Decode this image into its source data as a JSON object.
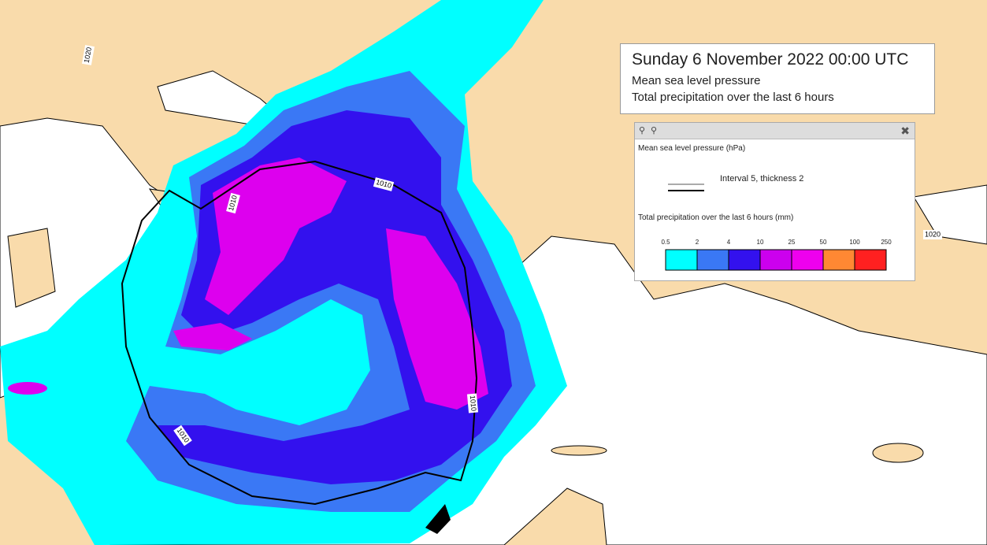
{
  "header": {
    "title": "Sunday 6 November 2022 00:00 UTC",
    "lines": [
      "Mean sea level pressure",
      "Total precipitation over the last 6 hours"
    ]
  },
  "legend": {
    "pressure": {
      "title": "Mean sea level pressure (hPa)",
      "style": "Interval 5, thickness 2"
    },
    "precipitation": {
      "title": "Total precipitation over the last 6 hours (mm)",
      "levels": [
        "0.5",
        "2",
        "4",
        "10",
        "25",
        "50",
        "100",
        "250"
      ],
      "colors": [
        "#00ffff",
        "#3a78f5",
        "#3311ee",
        "#cc00ee",
        "#ee00ee",
        "#ff8833",
        "#ff2020"
      ]
    }
  },
  "isobar_labels": [
    "1020",
    "1010",
    "1010",
    "1010",
    "1010",
    "1020"
  ]
}
